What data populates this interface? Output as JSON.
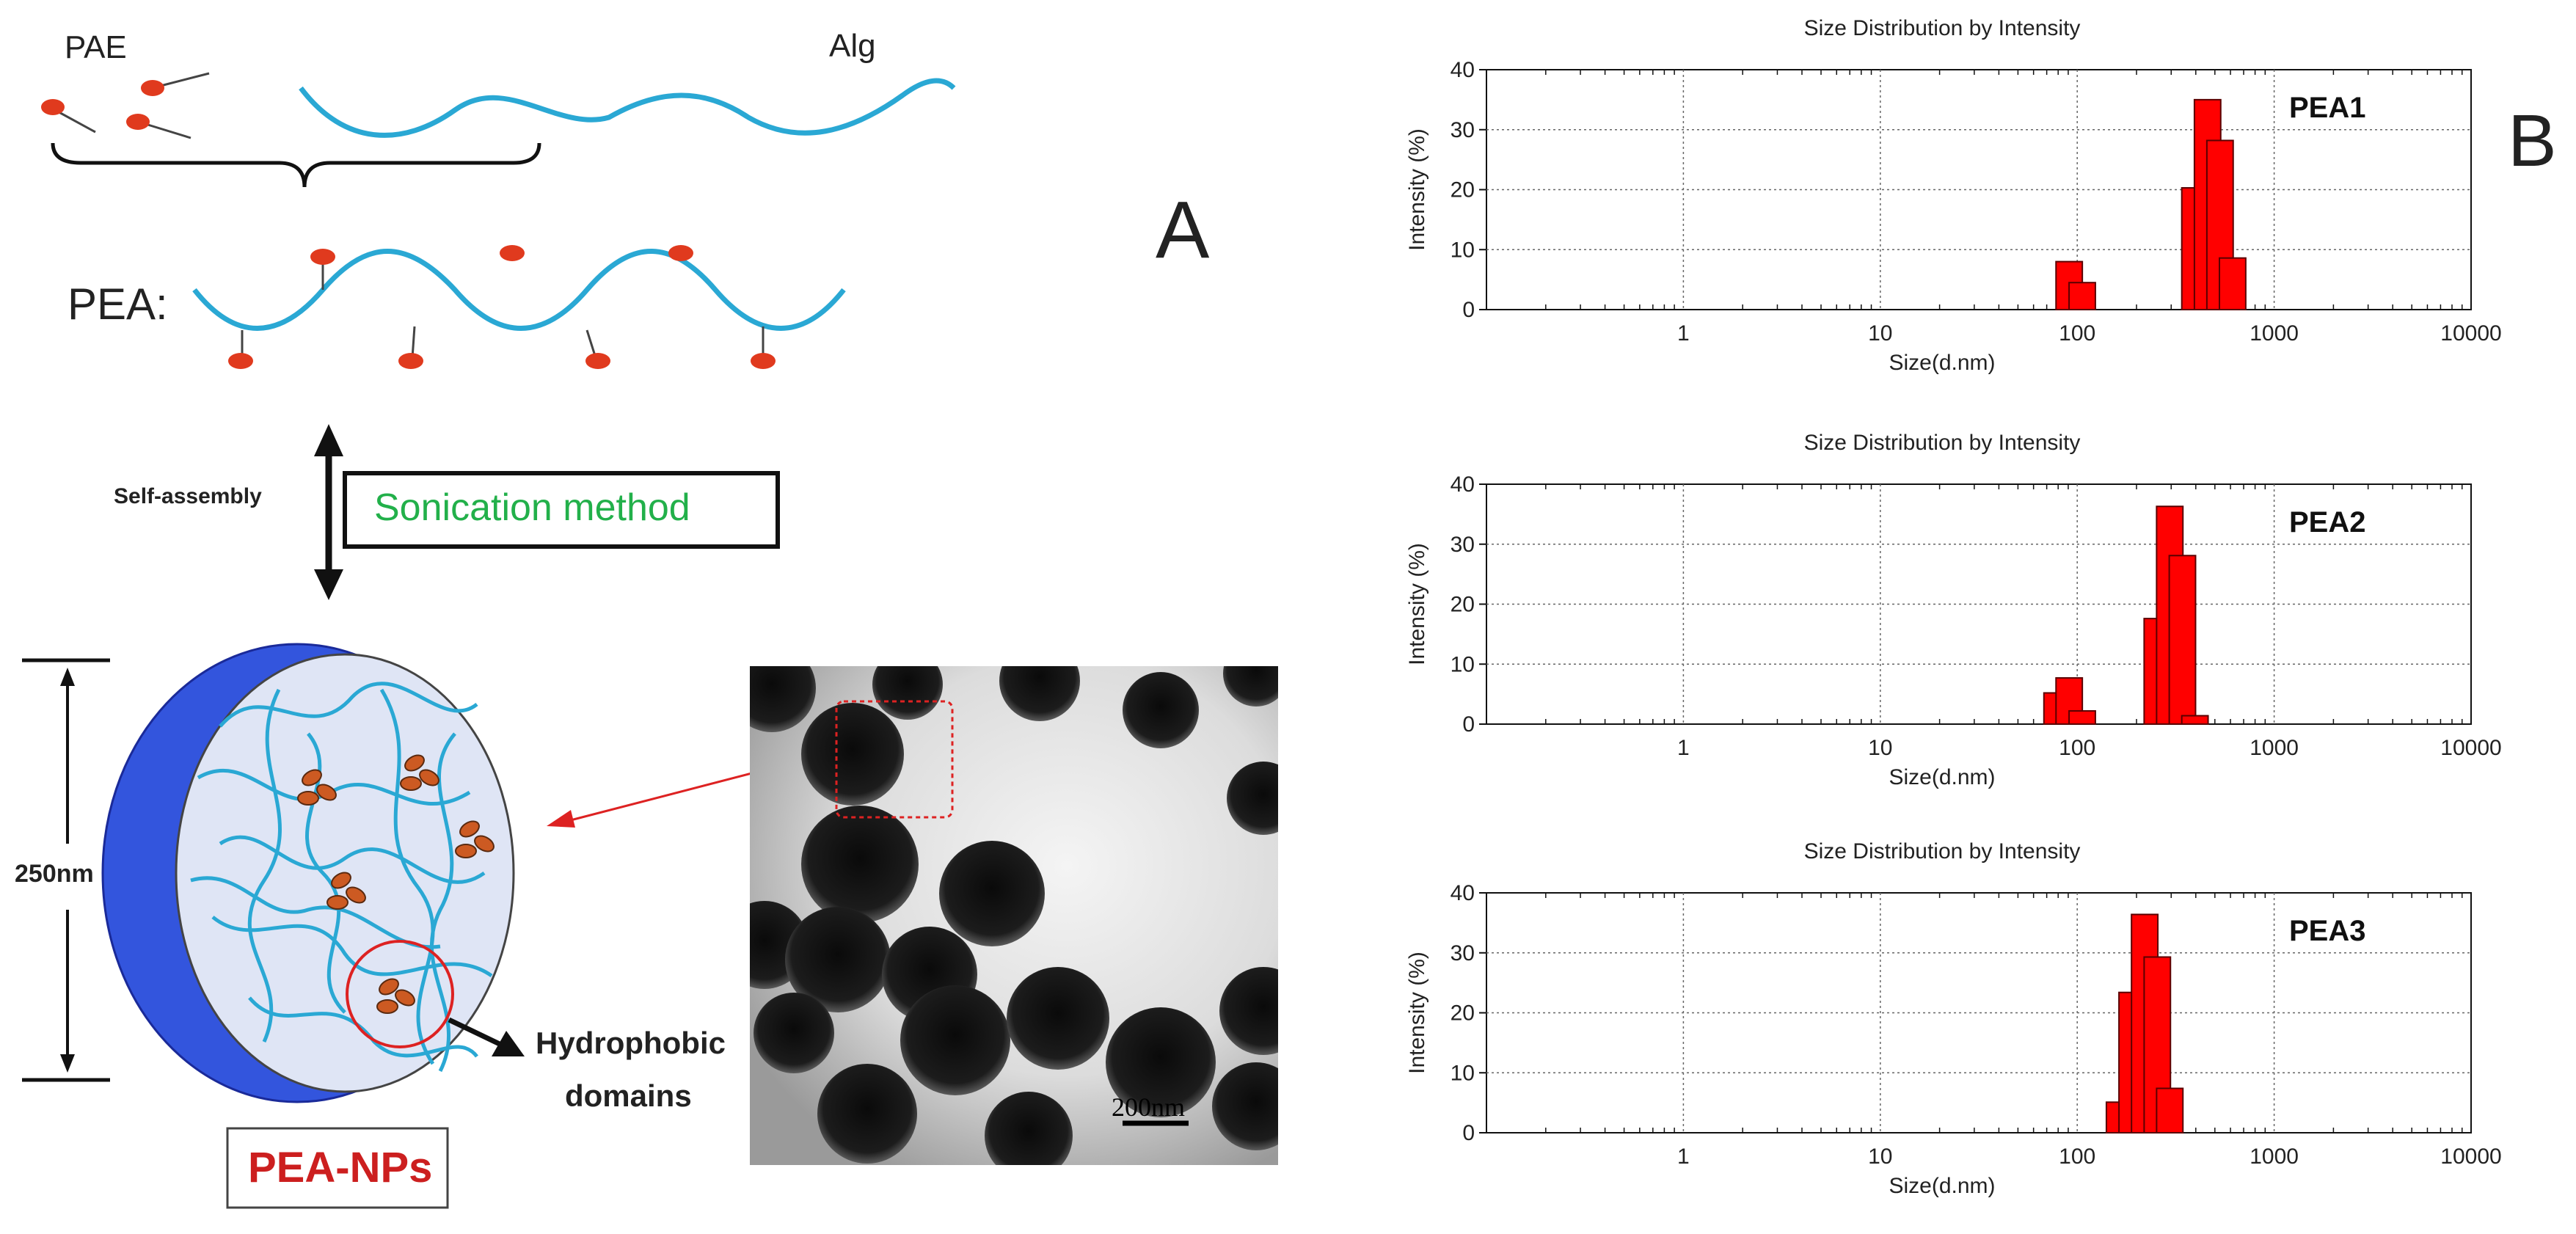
{
  "panel_a": {
    "letter": "A",
    "pae_label": "PAE",
    "alg_label": "Alg",
    "pea_label": "PEA:",
    "self_assembly_label": "Self-assembly",
    "sonication_label": "Sonication method",
    "size_label": "250nm",
    "hydrophobic_label_line1": "Hydrophobic",
    "hydrophobic_label_line2": "domains",
    "np_label": "PEA-NPs",
    "scale_bar_label": "200nm"
  },
  "panel_b": {
    "letter": "B"
  },
  "colors": {
    "chain": "#2aa8d4",
    "pae_head": "#e03a1e",
    "np_shell": "#3355dd",
    "np_core": "#dfe5f5",
    "hydrophobic": "#cc5a22",
    "sonication_text": "#22b04a",
    "np_text": "#cc1f1f",
    "bar_fill": "#ff0000",
    "bar_stroke": "#5a0000"
  },
  "chart_data": [
    {
      "type": "bar",
      "title": "Size Distribution by Intensity",
      "xlabel": "Size(d.nm)",
      "ylabel": "Intensity (%)",
      "x_scale": "log",
      "xlim": [
        0.1,
        10000
      ],
      "ylim": [
        0,
        40
      ],
      "x_tick_labels": [
        "1",
        "10",
        "100",
        "1000",
        "10000"
      ],
      "y_tick_labels": [
        "0",
        "10",
        "20",
        "30",
        "40"
      ],
      "grid": true,
      "series": [
        {
          "name": "PEA1",
          "x": [
            91,
            106,
            396,
            459,
            531,
            615
          ],
          "values": [
            8.0,
            4.5,
            20.3,
            35.0,
            28.2,
            8.6
          ]
        }
      ]
    },
    {
      "type": "bar",
      "title": "Size Distribution by Intensity",
      "xlabel": "Size(d.nm)",
      "ylabel": "Intensity (%)",
      "x_scale": "log",
      "xlim": [
        0.1,
        10000
      ],
      "ylim": [
        0,
        40
      ],
      "x_tick_labels": [
        "1",
        "10",
        "100",
        "1000",
        "10000"
      ],
      "y_tick_labels": [
        "0",
        "10",
        "20",
        "30",
        "40"
      ],
      "grid": true,
      "series": [
        {
          "name": "PEA2",
          "x": [
            79,
            91,
            106,
            255,
            295,
            342,
            396
          ],
          "values": [
            5.2,
            7.7,
            2.2,
            17.6,
            36.3,
            28.1,
            1.4
          ]
        }
      ]
    },
    {
      "type": "bar",
      "title": "Size Distribution by Intensity",
      "xlabel": "Size(d.nm)",
      "ylabel": "Intensity (%)",
      "x_scale": "log",
      "xlim": [
        0.1,
        10000
      ],
      "ylim": [
        0,
        40
      ],
      "x_tick_labels": [
        "1",
        "10",
        "100",
        "1000",
        "10000"
      ],
      "y_tick_labels": [
        "0",
        "10",
        "20",
        "30",
        "40"
      ],
      "grid": true,
      "series": [
        {
          "name": "PEA3",
          "x": [
            164,
            190,
            220,
            255,
            295,
            342
          ],
          "values": [
            5.1,
            23.4,
            36.4,
            29.3,
            7.4,
            0
          ]
        }
      ]
    }
  ]
}
